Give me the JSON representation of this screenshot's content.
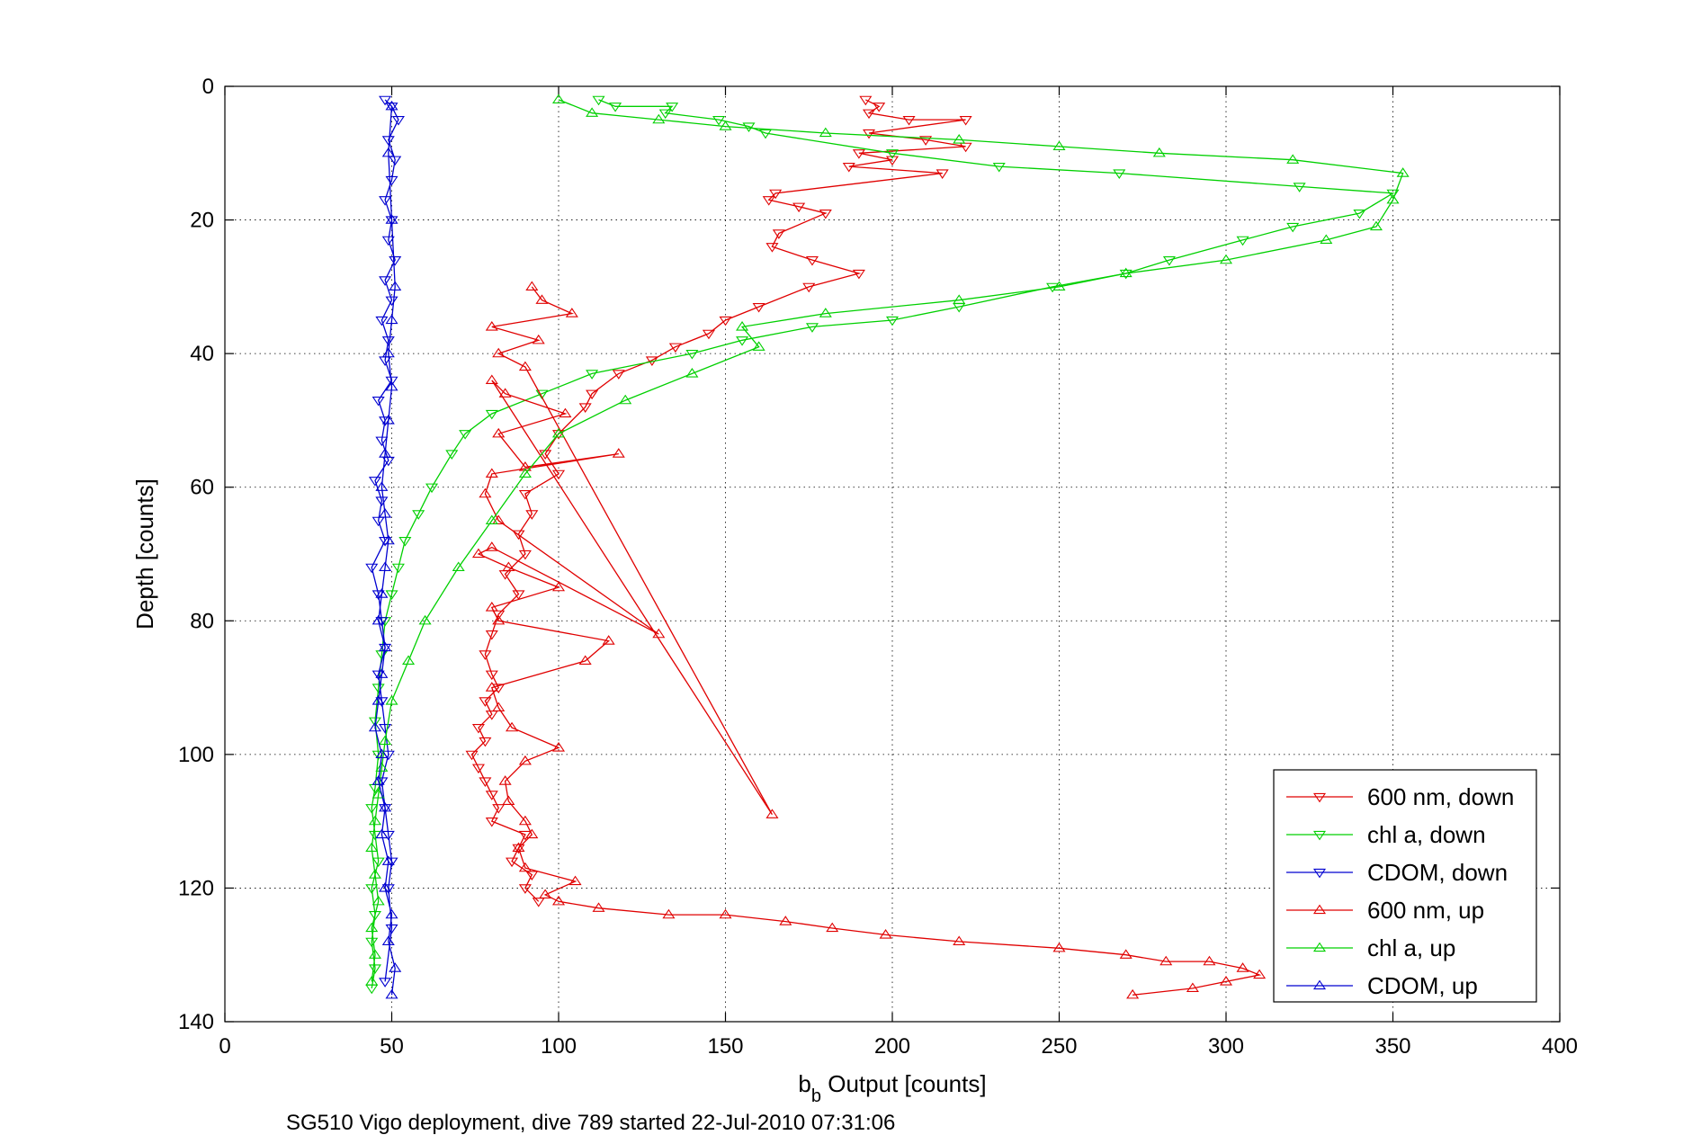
{
  "chart_data": {
    "type": "line",
    "xlabel_main": "b",
    "xlabel_sub": "b",
    "xlabel_rest": " Output [counts]",
    "ylabel": "Depth [counts]",
    "caption": "SG510 Vigo deployment, dive 789 started 22-Jul-2010 07:31:06",
    "xlim": [
      0,
      400
    ],
    "ylim": [
      0,
      140
    ],
    "y_reversed": true,
    "grid": true,
    "legend_position": "bottom-right",
    "x_ticks": [
      0,
      50,
      100,
      150,
      200,
      250,
      300,
      350,
      400
    ],
    "y_ticks": [
      0,
      20,
      40,
      60,
      80,
      100,
      120,
      140
    ],
    "colors": {
      "red": "#e00000",
      "green": "#00d000",
      "blue": "#0000d0"
    },
    "series": [
      {
        "name": "600 nm, down",
        "color": "#e00000",
        "marker": "triangle-down",
        "x": [
          192,
          196,
          193,
          205,
          222,
          193,
          210,
          222,
          190,
          200,
          187,
          215,
          165,
          163,
          172,
          180,
          166,
          164,
          176,
          190,
          175,
          160,
          150,
          145,
          135,
          128,
          118,
          110,
          108,
          100,
          96,
          100,
          90,
          92,
          88,
          90,
          84,
          88,
          82,
          80,
          78,
          80,
          82,
          78,
          80,
          76,
          78,
          74,
          76,
          78,
          80,
          82,
          80,
          90,
          88,
          86,
          92,
          90,
          94
        ],
        "y": [
          2,
          3,
          4,
          5,
          5,
          7,
          8,
          9,
          10,
          11,
          12,
          13,
          16,
          17,
          18,
          19,
          22,
          24,
          26,
          28,
          30,
          33,
          35,
          37,
          39,
          41,
          43,
          46,
          48,
          52,
          55,
          58,
          61,
          64,
          67,
          70,
          73,
          76,
          79,
          82,
          85,
          88,
          90,
          92,
          94,
          96,
          98,
          100,
          102,
          104,
          106,
          108,
          110,
          112,
          114,
          116,
          118,
          120,
          122
        ]
      },
      {
        "name": "chl a, down",
        "color": "#00d000",
        "marker": "triangle-down",
        "x": [
          112,
          117,
          134,
          132,
          148,
          157,
          162,
          200,
          232,
          268,
          322,
          350,
          340,
          320,
          305,
          283,
          270,
          248,
          220,
          200,
          176,
          155,
          140,
          110,
          95,
          80,
          72,
          68,
          62,
          58,
          54,
          52,
          50,
          48,
          47,
          46,
          45,
          46,
          45,
          44,
          45,
          46,
          44,
          45,
          44,
          45,
          44
        ],
        "y": [
          2,
          3,
          3,
          4,
          5,
          6,
          7,
          10,
          12,
          13,
          15,
          16,
          19,
          21,
          23,
          26,
          28,
          30,
          33,
          35,
          36,
          38,
          40,
          43,
          46,
          49,
          52,
          55,
          60,
          64,
          68,
          72,
          76,
          80,
          85,
          90,
          95,
          100,
          105,
          108,
          112,
          116,
          120,
          124,
          128,
          132,
          135
        ]
      },
      {
        "name": "CDOM, down",
        "color": "#0000d0",
        "marker": "triangle-down",
        "x": [
          48,
          50,
          52,
          49,
          51,
          50,
          48,
          50,
          49,
          51,
          48,
          50,
          47,
          49,
          48,
          50,
          46,
          48,
          47,
          49,
          45,
          47,
          46,
          48,
          44,
          46,
          47,
          48,
          46,
          47,
          48,
          49,
          47,
          48,
          49,
          50,
          49,
          50,
          48
        ],
        "y": [
          2,
          3,
          5,
          8,
          11,
          14,
          17,
          20,
          23,
          26,
          29,
          32,
          35,
          38,
          41,
          44,
          47,
          50,
          53,
          56,
          59,
          62,
          65,
          68,
          72,
          76,
          80,
          84,
          88,
          92,
          96,
          100,
          104,
          108,
          112,
          116,
          120,
          126,
          134
        ]
      },
      {
        "name": "600 nm, up",
        "color": "#e00000",
        "marker": "triangle-up",
        "x": [
          272,
          290,
          300,
          310,
          305,
          295,
          282,
          270,
          250,
          220,
          198,
          182,
          168,
          150,
          133,
          112,
          100,
          96,
          105,
          90,
          88,
          92,
          90,
          85,
          84,
          90,
          100,
          86,
          82,
          80,
          108,
          115,
          82,
          80,
          100,
          85,
          76,
          80,
          130,
          82,
          78,
          80,
          118,
          90,
          82,
          102,
          84,
          80,
          164,
          90,
          82,
          94,
          80,
          104,
          95,
          92
        ],
        "y": [
          136,
          135,
          134,
          133,
          132,
          131,
          131,
          130,
          129,
          128,
          127,
          126,
          125,
          124,
          124,
          123,
          122,
          121,
          119,
          117,
          114,
          112,
          110,
          107,
          104,
          101,
          99,
          96,
          93,
          90,
          86,
          83,
          80,
          78,
          75,
          72,
          70,
          69,
          82,
          65,
          61,
          58,
          55,
          57,
          52,
          49,
          46,
          44,
          109,
          42,
          40,
          38,
          36,
          34,
          32,
          30
        ]
      },
      {
        "name": "chl a, up",
        "color": "#00d000",
        "marker": "triangle-up",
        "x": [
          44,
          45,
          44,
          46,
          45,
          44,
          45,
          46,
          47,
          48,
          50,
          55,
          60,
          70,
          80,
          90,
          100,
          120,
          140,
          160,
          155,
          180,
          220,
          250,
          270,
          300,
          330,
          345,
          350,
          353,
          320,
          280,
          250,
          220,
          180,
          150,
          130,
          110,
          100
        ],
        "y": [
          134,
          130,
          126,
          122,
          118,
          114,
          110,
          106,
          102,
          98,
          92,
          86,
          80,
          72,
          65,
          58,
          52,
          47,
          43,
          39,
          36,
          34,
          32,
          30,
          28,
          26,
          23,
          21,
          17,
          13,
          11,
          10,
          9,
          8,
          7,
          6,
          5,
          4,
          2
        ]
      },
      {
        "name": "CDOM, up",
        "color": "#0000d0",
        "marker": "triangle-up",
        "x": [
          50,
          51,
          49,
          50,
          48,
          49,
          47,
          48,
          46,
          47,
          45,
          46,
          47,
          48,
          46,
          47,
          48,
          49,
          48,
          47,
          48,
          49,
          50,
          49,
          50,
          51,
          50,
          49,
          50
        ],
        "y": [
          136,
          132,
          128,
          124,
          120,
          116,
          112,
          108,
          104,
          100,
          96,
          92,
          88,
          84,
          80,
          76,
          72,
          68,
          64,
          60,
          55,
          50,
          45,
          40,
          35,
          30,
          20,
          10,
          3
        ]
      }
    ]
  }
}
